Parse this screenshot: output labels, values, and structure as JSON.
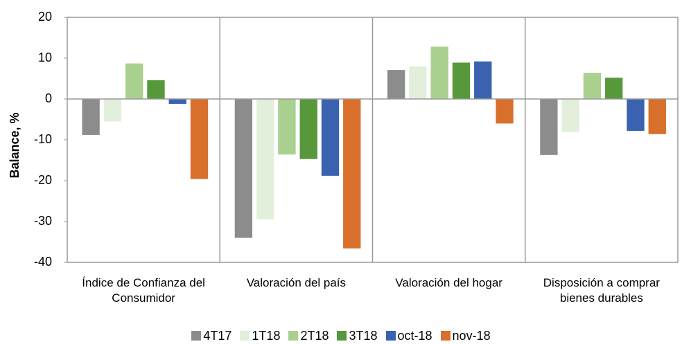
{
  "chart_data": {
    "type": "bar",
    "y_label": "Balance, %",
    "categories": [
      "Índice de Confianza del Consumidor",
      "Valoración del país",
      "Valoración del hogar",
      "Disposición a comprar bienes durables"
    ],
    "series": [
      {
        "name": "4T17",
        "color": "#8c8c8c",
        "values": [
          -8.8,
          -34.0,
          7.1,
          -13.7
        ]
      },
      {
        "name": "1T18",
        "color": "#e2efda",
        "values": [
          -5.5,
          -29.5,
          8.0,
          -8.1
        ]
      },
      {
        "name": "2T18",
        "color": "#a9d08e",
        "values": [
          8.7,
          -13.6,
          12.8,
          6.4
        ]
      },
      {
        "name": "3T18",
        "color": "#56983a",
        "values": [
          4.6,
          -14.7,
          8.9,
          5.2
        ]
      },
      {
        "name": "oct-18",
        "color": "#3a62b0",
        "values": [
          -1.2,
          -18.8,
          9.2,
          -7.8
        ]
      },
      {
        "name": "nov-18",
        "color": "#d86f2a",
        "values": [
          -19.6,
          -36.6,
          -6.0,
          -8.6
        ]
      }
    ],
    "ylim": [
      -40,
      20
    ],
    "yticks": [
      -40,
      -30,
      -20,
      -10,
      0,
      10,
      20
    ],
    "legend": "bottom"
  }
}
